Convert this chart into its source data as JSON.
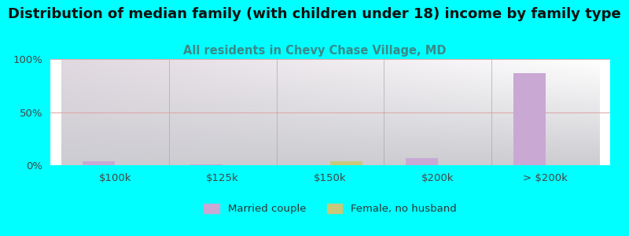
{
  "title": "Distribution of median family (with children under 18) income by family type",
  "subtitle": "All residents in Chevy Chase Village, MD",
  "categories": [
    "$100k",
    "$125k",
    "$150k",
    "$200k",
    "> $200k"
  ],
  "married_couple": [
    3.5,
    1.0,
    0.0,
    7.0,
    87.0
  ],
  "female_no_husband": [
    0.0,
    0.0,
    3.5,
    0.0,
    0.0
  ],
  "married_color": "#c9a8d4",
  "female_color": "#c8c87a",
  "background_color": "#00ffff",
  "title_fontsize": 13,
  "subtitle_fontsize": 10.5,
  "subtitle_color": "#3a8a8a",
  "ylim": [
    0,
    100
  ],
  "bar_width": 0.3
}
